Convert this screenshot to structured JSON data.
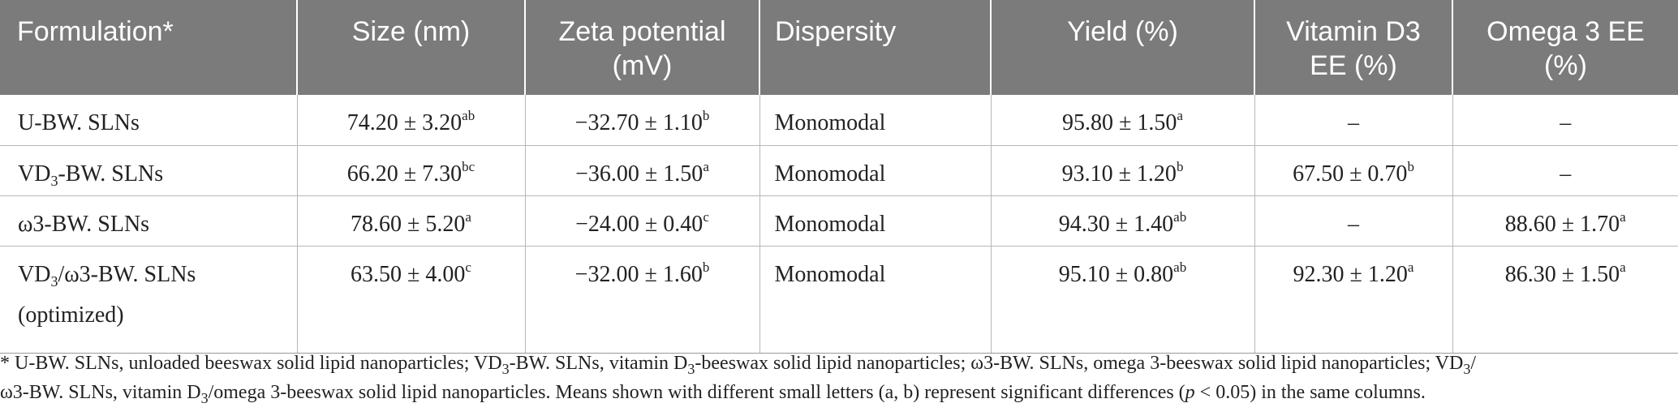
{
  "table": {
    "headers": [
      {
        "line1": "Formulation*",
        "line2": ""
      },
      {
        "line1": "Size (nm)",
        "line2": ""
      },
      {
        "line1": "Zeta potential",
        "line2": "(mV)"
      },
      {
        "line1": "Dispersity",
        "line2": ""
      },
      {
        "line1": "Yield (%)",
        "line2": ""
      },
      {
        "line1": "Vitamin D3",
        "line2": "EE (%)"
      },
      {
        "line1": "Omega 3 EE",
        "line2": "(%)"
      }
    ],
    "rows": [
      {
        "formulation": {
          "pre": "U-BW. SLNs",
          "sub": "",
          "post": "",
          "line2": ""
        },
        "size": {
          "value": "74.20 ± 3.20",
          "sup": "ab"
        },
        "zeta": {
          "value": "−32.70 ± 1.10",
          "sup": "b"
        },
        "dispersity": "Monomodal",
        "yield": {
          "value": "95.80 ± 1.50",
          "sup": "a"
        },
        "vd3_ee": {
          "value": "–",
          "sup": ""
        },
        "omega3_ee": {
          "value": "–",
          "sup": ""
        }
      },
      {
        "formulation": {
          "pre": "VD",
          "sub": "3",
          "post": "-BW. SLNs",
          "line2": ""
        },
        "size": {
          "value": "66.20 ± 7.30",
          "sup": "bc"
        },
        "zeta": {
          "value": "−36.00 ± 1.50",
          "sup": "a"
        },
        "dispersity": "Monomodal",
        "yield": {
          "value": "93.10 ± 1.20",
          "sup": "b"
        },
        "vd3_ee": {
          "value": "67.50 ± 0.70",
          "sup": "b"
        },
        "omega3_ee": {
          "value": "–",
          "sup": ""
        }
      },
      {
        "formulation": {
          "pre": "ω3-BW. SLNs",
          "sub": "",
          "post": "",
          "line2": ""
        },
        "size": {
          "value": "78.60 ± 5.20",
          "sup": "a"
        },
        "zeta": {
          "value": "−24.00 ± 0.40",
          "sup": "c"
        },
        "dispersity": "Monomodal",
        "yield": {
          "value": "94.30 ± 1.40",
          "sup": "ab"
        },
        "vd3_ee": {
          "value": "–",
          "sup": ""
        },
        "omega3_ee": {
          "value": "88.60 ± 1.70",
          "sup": "a"
        }
      },
      {
        "formulation": {
          "pre": "VD",
          "sub": "3",
          "post": "/ω3-BW. SLNs",
          "line2": "(optimized)"
        },
        "size": {
          "value": "63.50 ± 4.00",
          "sup": "c"
        },
        "zeta": {
          "value": "−32.00 ± 1.60",
          "sup": "b"
        },
        "dispersity": "Monomodal",
        "yield": {
          "value": "95.10 ± 0.80",
          "sup": "ab"
        },
        "vd3_ee": {
          "value": "92.30 ± 1.20",
          "sup": "a"
        },
        "omega3_ee": {
          "value": "86.30 ± 1.50",
          "sup": "a"
        }
      }
    ]
  },
  "footnote": {
    "l1_a": "* U-BW. SLNs, unloaded beeswax solid lipid nanoparticles; VD",
    "l1_sub1": "3",
    "l1_b": "-BW. SLNs, vitamin D",
    "l1_sub2": "3",
    "l1_c": "-beeswax solid lipid nanoparticles; ω3-BW. SLNs, omega 3-beeswax solid lipid nanoparticles; VD",
    "l1_sub3": "3",
    "l1_d": "/",
    "l2_a": "ω3-BW. SLNs, vitamin D",
    "l2_sub1": "3",
    "l2_b": "/omega 3-beeswax solid lipid nanoparticles. Means shown with different small letters (a, b) represent significant differences (",
    "l2_p": "p",
    "l2_c": " < 0.05) in the same columns."
  }
}
